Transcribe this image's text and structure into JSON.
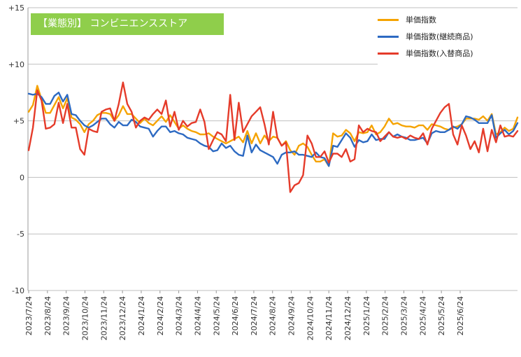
{
  "title": "【業態別】 コンビニエンスストア",
  "chart_data": {
    "type": "line",
    "ylim": [
      -10,
      15
    ],
    "yticks": [
      "+15",
      "+10",
      "+5",
      "0",
      "-5",
      "-10"
    ],
    "ytick_values": [
      15,
      10,
      5,
      0,
      -5,
      -10
    ],
    "xtick_labels": [
      "2023/7/24",
      "2023/8/24",
      "2023/9/24",
      "2023/10/24",
      "2023/11/24",
      "2023/12/24",
      "2024/1/24",
      "2024/2/24",
      "2024/3/24",
      "2024/4/24",
      "2024/5/24",
      "2024/6/24",
      "2024/7/24",
      "2024/8/24",
      "2024/9/24",
      "2024/10/24",
      "2024/11/24",
      "2024/12/24",
      "2025/1/24",
      "2025/2/24",
      "2025/3/24",
      "2025/4/24",
      "2025/5/24",
      "2025/6/24"
    ],
    "x_points_per_label": 4.375,
    "grid": "horizontal",
    "legend_position": "top-right",
    "series": [
      {
        "name": "単価指数",
        "color": "#f5a300",
        "values": [
          5.8,
          6.4,
          8.1,
          6.9,
          5.7,
          5.7,
          6.4,
          7.1,
          6.1,
          7.0,
          5.3,
          5.1,
          4.7,
          4.0,
          4.7,
          5.0,
          5.5,
          5.7,
          5.7,
          5.6,
          5.0,
          5.5,
          6.3,
          5.6,
          5.6,
          5.2,
          4.8,
          5.2,
          4.8,
          4.6,
          5.0,
          5.4,
          4.9,
          5.5,
          4.9,
          4.3,
          4.6,
          4.3,
          4.1,
          4.0,
          3.8,
          3.8,
          3.9,
          3.6,
          3.4,
          3.2,
          3.0,
          3.2,
          3.4,
          3.6,
          3.1,
          4.1,
          3.0,
          3.9,
          3.0,
          3.7,
          3.2,
          3.6,
          3.5,
          2.8,
          3.2,
          2.4,
          2.0,
          2.8,
          3.0,
          2.7,
          2.0,
          1.4,
          1.4,
          1.6,
          1.0,
          3.9,
          3.6,
          3.7,
          4.2,
          3.9,
          3.2,
          4.0,
          3.9,
          4.0,
          4.6,
          3.8,
          4.0,
          4.5,
          5.2,
          4.7,
          4.8,
          4.6,
          4.5,
          4.5,
          4.4,
          4.6,
          4.6,
          4.2,
          4.7,
          4.6,
          4.5,
          4.3,
          4.2,
          4.4,
          4.5,
          4.7,
          5.2,
          5.2,
          5.2,
          5.1,
          5.4,
          5.0,
          5.6,
          3.8,
          4.0,
          4.4,
          4.1,
          4.3,
          5.3
        ]
      },
      {
        "name": "単価指数(継続商品)",
        "color": "#2d6ac2",
        "values": [
          7.4,
          7.3,
          7.4,
          7.1,
          6.5,
          6.5,
          7.2,
          7.5,
          6.7,
          7.3,
          5.6,
          5.5,
          5.0,
          4.6,
          4.4,
          4.6,
          4.9,
          5.2,
          5.2,
          4.7,
          4.4,
          4.9,
          4.6,
          4.6,
          5.1,
          4.9,
          4.5,
          4.4,
          4.3,
          3.6,
          4.1,
          4.5,
          4.5,
          4.0,
          4.1,
          3.9,
          3.8,
          3.5,
          3.4,
          3.3,
          3.0,
          2.8,
          2.7,
          2.3,
          2.4,
          3.0,
          2.6,
          2.8,
          2.3,
          2.0,
          1.9,
          3.7,
          2.2,
          2.9,
          2.4,
          2.2,
          2.0,
          1.8,
          1.2,
          2.0,
          2.2,
          2.2,
          2.3,
          2.0,
          2.0,
          1.9,
          1.8,
          2.2,
          1.8,
          1.7,
          1.0,
          2.8,
          2.7,
          3.3,
          3.9,
          3.5,
          2.7,
          3.3,
          3.1,
          3.2,
          3.8,
          3.3,
          3.4,
          3.4,
          4.0,
          3.6,
          3.8,
          3.6,
          3.5,
          3.3,
          3.3,
          3.4,
          3.5,
          3.0,
          3.9,
          4.1,
          4.0,
          4.0,
          4.2,
          4.5,
          4.3,
          4.7,
          5.4,
          5.3,
          5.1,
          4.8,
          4.8,
          4.8,
          5.5,
          3.5,
          3.9,
          4.2,
          3.8,
          4.1,
          4.8
        ]
      },
      {
        "name": "単価指数(入替商品)",
        "color": "#e53b2a",
        "values": [
          2.4,
          4.4,
          7.7,
          6.8,
          4.3,
          4.4,
          4.7,
          6.6,
          4.8,
          6.5,
          4.4,
          4.4,
          2.5,
          2.0,
          4.3,
          4.1,
          4.0,
          5.8,
          6.0,
          6.1,
          5.0,
          6.5,
          8.4,
          6.5,
          5.8,
          4.4,
          5.0,
          5.3,
          5.1,
          5.6,
          6.0,
          5.6,
          6.8,
          4.5,
          5.8,
          4.2,
          5.0,
          4.5,
          4.8,
          4.9,
          6.0,
          4.9,
          2.5,
          3.3,
          4.0,
          3.8,
          3.2,
          7.3,
          3.3,
          6.6,
          4.0,
          4.7,
          5.4,
          5.8,
          6.2,
          4.7,
          2.9,
          5.8,
          3.5,
          2.8,
          3.1,
          -1.3,
          -0.7,
          -0.5,
          0.2,
          3.7,
          3.0,
          1.8,
          1.8,
          2.3,
          1.3,
          2.1,
          2.1,
          1.8,
          2.5,
          1.4,
          1.6,
          4.6,
          4.0,
          4.3,
          4.1,
          4.0,
          3.2,
          3.6,
          4.0,
          3.6,
          3.5,
          3.6,
          3.4,
          3.7,
          3.5,
          3.4,
          3.9,
          2.9,
          4.3,
          5.0,
          5.7,
          6.2,
          6.5,
          3.8,
          2.9,
          4.6,
          3.7,
          2.5,
          3.2,
          2.2,
          4.3,
          2.3,
          4.2,
          3.1,
          4.6,
          3.6,
          3.7,
          3.6,
          4.1
        ]
      }
    ]
  }
}
